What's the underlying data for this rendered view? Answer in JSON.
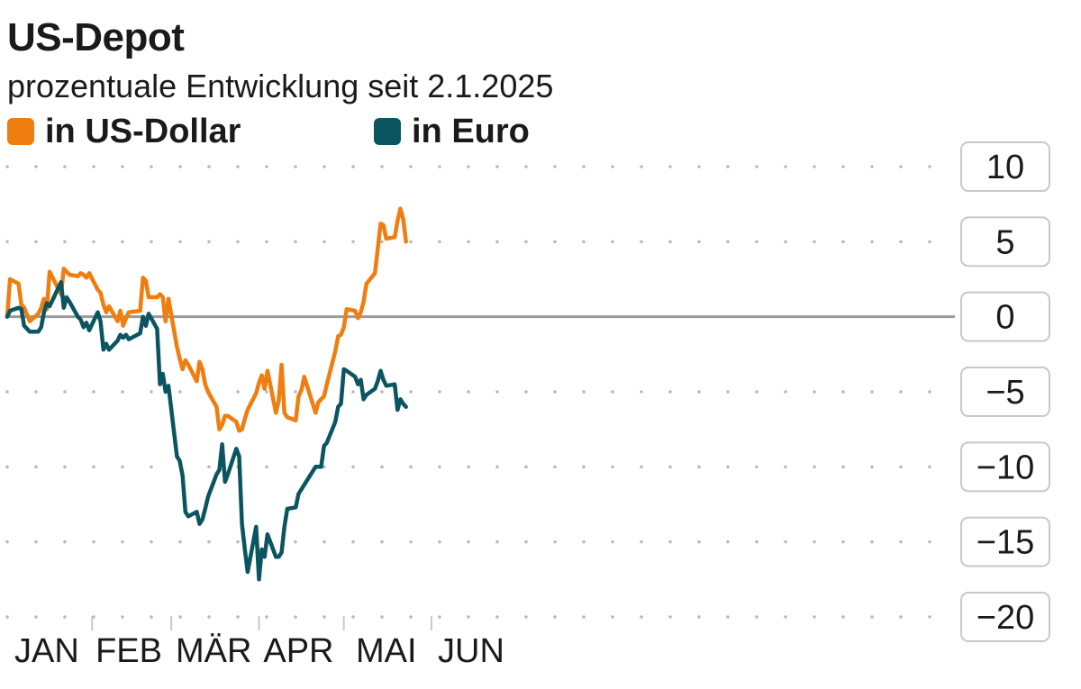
{
  "title": "US-Depot",
  "subtitle": "prozentuale Entwicklung seit 2.1.2025",
  "chart_data": {
    "type": "line",
    "title": "US-Depot",
    "subtitle": "prozentuale Entwicklung seit 2.1.2025",
    "xlabel": "",
    "ylabel": "",
    "ylim": [
      -20,
      10
    ],
    "yticks": [
      10,
      5,
      0,
      -5,
      -10,
      -15,
      -20
    ],
    "ytick_labels": [
      "10",
      "5",
      "0",
      "−5",
      "−10",
      "−15",
      "−20"
    ],
    "xlim": [
      "2025-01-02",
      "2025-06-30"
    ],
    "xtick_labels": [
      "JAN",
      "FEB",
      "MÄR",
      "APR",
      "MAI",
      "JUN"
    ],
    "grid": "dotted-horizontal",
    "legend": "top-left",
    "zero_line": true,
    "series": [
      {
        "name": "in US-Dollar",
        "color": "#f07d0f",
        "x": [
          "2025-01-02",
          "2025-01-03",
          "2025-01-06",
          "2025-01-07",
          "2025-01-08",
          "2025-01-10",
          "2025-01-13",
          "2025-01-14",
          "2025-01-15",
          "2025-01-16",
          "2025-01-17",
          "2025-01-21",
          "2025-01-22",
          "2025-01-23",
          "2025-01-24",
          "2025-01-27",
          "2025-01-28",
          "2025-01-29",
          "2025-01-30",
          "2025-01-31",
          "2025-02-03",
          "2025-02-04",
          "2025-02-05",
          "2025-02-06",
          "2025-02-07",
          "2025-02-10",
          "2025-02-11",
          "2025-02-12",
          "2025-02-13",
          "2025-02-14",
          "2025-02-18",
          "2025-02-19",
          "2025-02-20",
          "2025-02-21",
          "2025-02-24",
          "2025-02-25",
          "2025-02-26",
          "2025-02-27",
          "2025-02-28",
          "2025-03-03",
          "2025-03-04",
          "2025-03-05",
          "2025-03-06",
          "2025-03-07",
          "2025-03-10",
          "2025-03-11",
          "2025-03-12",
          "2025-03-13",
          "2025-03-14",
          "2025-03-17",
          "2025-03-18",
          "2025-03-19",
          "2025-03-20",
          "2025-03-21",
          "2025-03-24",
          "2025-03-25",
          "2025-03-26",
          "2025-03-27",
          "2025-03-28",
          "2025-03-31",
          "2025-04-01",
          "2025-04-02",
          "2025-04-03",
          "2025-04-04",
          "2025-04-07",
          "2025-04-08",
          "2025-04-09",
          "2025-04-10",
          "2025-04-11",
          "2025-04-14",
          "2025-04-15",
          "2025-04-16",
          "2025-04-17",
          "2025-04-21",
          "2025-04-22",
          "2025-04-23",
          "2025-04-24",
          "2025-04-25",
          "2025-04-28",
          "2025-04-29",
          "2025-04-30",
          "2025-05-01",
          "2025-05-02",
          "2025-05-05",
          "2025-05-06",
          "2025-05-07",
          "2025-05-08",
          "2025-05-09",
          "2025-05-12",
          "2025-05-13",
          "2025-05-14",
          "2025-05-15",
          "2025-05-16",
          "2025-05-19",
          "2025-05-20",
          "2025-05-21",
          "2025-05-22",
          "2025-05-23"
        ],
        "values": [
          0.0,
          2.5,
          2.2,
          0.8,
          0.6,
          -0.3,
          0.2,
          0.6,
          1.2,
          0.5,
          3.0,
          1.5,
          3.2,
          3.0,
          2.8,
          2.7,
          2.9,
          2.8,
          2.6,
          2.9,
          1.8,
          1.6,
          0.8,
          0.3,
          0.7,
          -0.3,
          0.4,
          -0.6,
          -0.1,
          0.3,
          0.4,
          2.6,
          2.4,
          1.3,
          1.3,
          1.5,
          1.3,
          -0.3,
          1.2,
          -2.0,
          -2.8,
          -3.5,
          -2.9,
          -3.2,
          -4.3,
          -3.0,
          -3.5,
          -4.5,
          -5.0,
          -6.0,
          -7.5,
          -7.2,
          -6.6,
          -6.6,
          -7.0,
          -7.6,
          -7.5,
          -6.8,
          -6.2,
          -5.1,
          -4.4,
          -3.9,
          -4.8,
          -3.6,
          -6.4,
          -5.6,
          -3.2,
          -6.4,
          -6.7,
          -6.9,
          -5.3,
          -4.9,
          -4.0,
          -6.4,
          -5.7,
          -5.5,
          -5.3,
          -4.5,
          -2.3,
          -1.3,
          -1.2,
          -0.7,
          0.5,
          0.4,
          -0.1,
          0.3,
          1.0,
          2.2,
          2.9,
          4.5,
          6.2,
          6.1,
          5.2,
          5.3,
          6.4,
          7.2,
          6.5,
          5.0
        ],
        "end_date": "2025-05-23"
      },
      {
        "name": "in Euro",
        "color": "#0b5561",
        "x": [
          "2025-01-02",
          "2025-01-03",
          "2025-01-06",
          "2025-01-07",
          "2025-01-08",
          "2025-01-10",
          "2025-01-13",
          "2025-01-14",
          "2025-01-15",
          "2025-01-16",
          "2025-01-17",
          "2025-01-21",
          "2025-01-22",
          "2025-01-23",
          "2025-01-24",
          "2025-01-27",
          "2025-01-28",
          "2025-01-29",
          "2025-01-30",
          "2025-01-31",
          "2025-02-03",
          "2025-02-04",
          "2025-02-05",
          "2025-02-06",
          "2025-02-07",
          "2025-02-10",
          "2025-02-11",
          "2025-02-12",
          "2025-02-13",
          "2025-02-14",
          "2025-02-18",
          "2025-02-19",
          "2025-02-20",
          "2025-02-21",
          "2025-02-24",
          "2025-02-25",
          "2025-02-26",
          "2025-02-27",
          "2025-02-28",
          "2025-03-03",
          "2025-03-04",
          "2025-03-05",
          "2025-03-06",
          "2025-03-07",
          "2025-03-10",
          "2025-03-11",
          "2025-03-12",
          "2025-03-13",
          "2025-03-14",
          "2025-03-17",
          "2025-03-18",
          "2025-03-19",
          "2025-03-20",
          "2025-03-21",
          "2025-03-24",
          "2025-03-25",
          "2025-03-26",
          "2025-03-27",
          "2025-03-28",
          "2025-03-31",
          "2025-04-01",
          "2025-04-02",
          "2025-04-03",
          "2025-04-04",
          "2025-04-07",
          "2025-04-08",
          "2025-04-09",
          "2025-04-10",
          "2025-04-11",
          "2025-04-14",
          "2025-04-15",
          "2025-04-16",
          "2025-04-17",
          "2025-04-21",
          "2025-04-22",
          "2025-04-23",
          "2025-04-24",
          "2025-04-25",
          "2025-04-28",
          "2025-04-29",
          "2025-04-30",
          "2025-05-01",
          "2025-05-02",
          "2025-05-05",
          "2025-05-06",
          "2025-05-07",
          "2025-05-08",
          "2025-05-09",
          "2025-05-12",
          "2025-05-13",
          "2025-05-14",
          "2025-05-15",
          "2025-05-16",
          "2025-05-19",
          "2025-05-20",
          "2025-05-21",
          "2025-05-22",
          "2025-05-23"
        ],
        "values": [
          0.0,
          0.4,
          0.6,
          0.5,
          -0.6,
          -1.0,
          -1.0,
          -0.7,
          0.3,
          0.9,
          0.7,
          2.3,
          0.6,
          1.3,
          1.0,
          0.0,
          -0.2,
          -0.7,
          -0.4,
          -0.9,
          0.3,
          -0.3,
          -2.2,
          -1.8,
          -2.2,
          -1.6,
          -1.2,
          -1.4,
          -1.2,
          -1.5,
          -1.1,
          0.0,
          -0.6,
          0.2,
          -0.8,
          -4.5,
          -3.8,
          -5.0,
          -4.6,
          -9.3,
          -9.6,
          -10.6,
          -13.0,
          -13.3,
          -13.0,
          -13.8,
          -13.5,
          -12.8,
          -12.0,
          -10.5,
          -10.2,
          -8.5,
          -11.0,
          -10.5,
          -8.8,
          -9.3,
          -13.8,
          -15.5,
          -17.0,
          -14.0,
          -17.5,
          -15.5,
          -16.0,
          -14.5,
          -16.0,
          -16.0,
          -15.7,
          -14.0,
          -12.8,
          -12.7,
          -11.8,
          -11.5,
          -11.2,
          -10.0,
          -10.0,
          -10.0,
          -8.6,
          -8.4,
          -7.0,
          -6.0,
          -5.8,
          -3.5,
          -3.6,
          -4.0,
          -4.5,
          -4.2,
          -5.5,
          -5.2,
          -4.8,
          -4.3,
          -3.6,
          -4.2,
          -4.6,
          -4.5,
          -6.2,
          -5.5,
          -5.8,
          -6.0
        ],
        "end_date": "2025-05-23"
      }
    ]
  },
  "colors": {
    "usd": "#f07d0f",
    "eur": "#0b5561",
    "zero_line": "#9a9a9a",
    "grid_dots": "#b8b8b8",
    "box_border": "#c8c8c8"
  }
}
